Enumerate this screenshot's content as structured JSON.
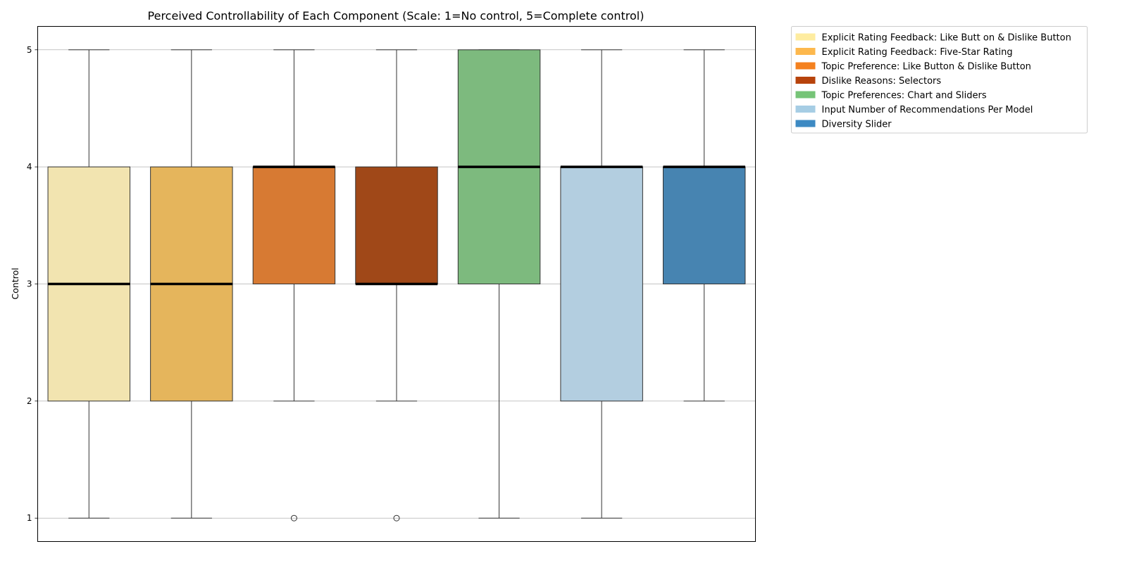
{
  "chart_data": {
    "type": "boxplot",
    "title": "Perceived Controllability of Each Component (Scale: 1=No control, 5=Complete control)",
    "xlabel": "",
    "ylabel": "Control",
    "ylim": [
      0.8,
      5.2
    ],
    "yticks": [
      "1",
      "2",
      "3",
      "4",
      "5"
    ],
    "grid": "horizontal",
    "legend_placement": "outside-top-right",
    "series": [
      {
        "name": "Explicit Rating Feedback: Like Butt on & Dislike Button",
        "color": "#f2e4b0",
        "legend_color": "#feeca0",
        "whislo": 1,
        "q1": 2,
        "med": 3,
        "q3": 4,
        "whishi": 5,
        "fliers": []
      },
      {
        "name": "Explicit Rating Feedback: Five-Star Rating",
        "color": "#e5b55c",
        "legend_color": "#fdb84d",
        "whislo": 1,
        "q1": 2,
        "med": 3,
        "q3": 4,
        "whishi": 5,
        "fliers": []
      },
      {
        "name": "Topic Preference: Like Button & Dislike Button",
        "color": "#d77a33",
        "legend_color": "#f4811f",
        "whislo": 2,
        "q1": 3,
        "med": 4,
        "q3": 4,
        "whishi": 5,
        "fliers": [
          1
        ]
      },
      {
        "name": "Dislike Reasons: Selectors",
        "color": "#a04818",
        "legend_color": "#b7430c",
        "whislo": 2,
        "q1": 3,
        "med": 3,
        "q3": 4,
        "whishi": 5,
        "fliers": [
          1
        ]
      },
      {
        "name": "Topic Preferences: Chart and Sliders",
        "color": "#7dba7e",
        "legend_color": "#76c477",
        "whislo": 1,
        "q1": 3,
        "med": 4,
        "q3": 5,
        "whishi": 5,
        "fliers": []
      },
      {
        "name": "Input Number of Recommendations Per Model",
        "color": "#b3cee0",
        "legend_color": "#a6cde4",
        "whislo": 1,
        "q1": 2,
        "med": 4,
        "q3": 4,
        "whishi": 5,
        "fliers": []
      },
      {
        "name": "Diversity Slider",
        "color": "#4784b1",
        "legend_color": "#3d8ac3",
        "whislo": 2,
        "q1": 3,
        "med": 4,
        "q3": 4,
        "whishi": 5,
        "fliers": []
      }
    ]
  }
}
